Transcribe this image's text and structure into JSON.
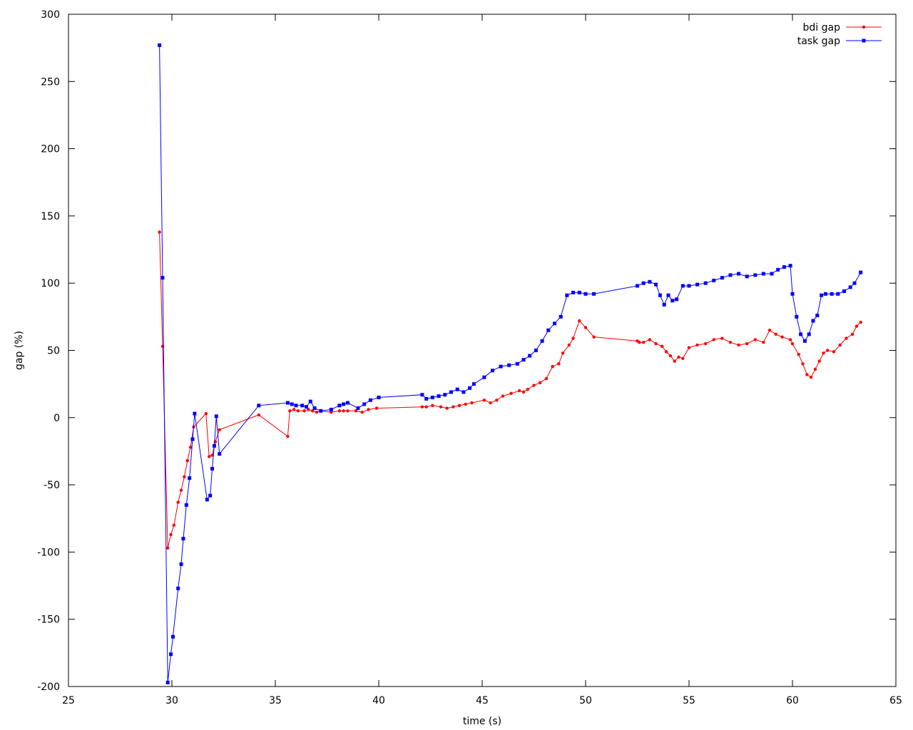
{
  "chart_data": {
    "type": "line",
    "xlabel": "time (s)",
    "ylabel": "gap (%)",
    "xlim": [
      25,
      65
    ],
    "ylim": [
      -200,
      300
    ],
    "xticks": [
      25,
      30,
      35,
      40,
      45,
      50,
      55,
      60,
      65
    ],
    "yticks": [
      -200,
      -150,
      -100,
      -50,
      0,
      50,
      100,
      150,
      200,
      250,
      300
    ],
    "grid": false,
    "legend_position": "top-right",
    "series": [
      {
        "name": "bdi gap",
        "color": "#ff0000",
        "marker": "circle",
        "x": [
          29.4,
          29.55,
          29.8,
          29.95,
          30.1,
          30.3,
          30.45,
          30.6,
          30.75,
          30.9,
          31.05,
          31.65,
          31.8,
          31.95,
          32.1,
          32.3,
          34.2,
          35.6,
          35.7,
          35.9,
          36.1,
          36.4,
          36.6,
          36.8,
          37.0,
          37.2,
          37.7,
          38.1,
          38.3,
          38.5,
          38.9,
          39.2,
          39.5,
          39.9,
          42.1,
          42.3,
          42.6,
          43.0,
          43.3,
          43.6,
          43.9,
          44.2,
          44.5,
          45.1,
          45.4,
          45.7,
          46.0,
          46.4,
          46.8,
          47.0,
          47.2,
          47.5,
          47.8,
          48.1,
          48.4,
          48.7,
          48.9,
          49.2,
          49.4,
          49.7,
          50.0,
          50.4,
          52.5,
          52.6,
          52.8,
          53.1,
          53.4,
          53.7,
          53.9,
          54.1,
          54.3,
          54.5,
          54.7,
          55.0,
          55.4,
          55.8,
          56.2,
          56.6,
          57.0,
          57.4,
          57.8,
          58.2,
          58.6,
          58.9,
          59.2,
          59.5,
          59.9,
          60.0,
          60.3,
          60.5,
          60.7,
          60.9,
          61.1,
          61.3,
          61.5,
          61.7,
          62.0,
          62.3,
          62.6,
          62.9,
          63.1,
          63.3
        ],
        "y": [
          138,
          53,
          -97,
          -87,
          -80,
          -63,
          -54,
          -44,
          -32,
          -22,
          -7,
          3,
          -29,
          -28,
          -18,
          -9,
          2,
          -14,
          5,
          6,
          5,
          5,
          6,
          5,
          4,
          5,
          4,
          5,
          5,
          5,
          5,
          4,
          6,
          7,
          8,
          8,
          9,
          8,
          7,
          8,
          9,
          10,
          11,
          13,
          11,
          13,
          16,
          18,
          20,
          19,
          21,
          24,
          26,
          29,
          38,
          40,
          48,
          54,
          59,
          72,
          67,
          60,
          57,
          56,
          56,
          58,
          55,
          53,
          49,
          46,
          42,
          45,
          44,
          52,
          54,
          55,
          58,
          59,
          56,
          54,
          55,
          58,
          56,
          65,
          62,
          60,
          58,
          55,
          47,
          40,
          32,
          30,
          36,
          42,
          48,
          50,
          49,
          54,
          59,
          62,
          68,
          71
        ],
        "legend_label": "bdi gap"
      },
      {
        "name": "task gap",
        "color": "#0000ff",
        "marker": "square",
        "x": [
          29.4,
          29.55,
          29.8,
          29.95,
          30.05,
          30.3,
          30.45,
          30.55,
          30.7,
          30.85,
          31.0,
          31.1,
          31.7,
          31.85,
          31.95,
          32.05,
          32.15,
          32.3,
          34.2,
          35.6,
          35.8,
          36.0,
          36.3,
          36.5,
          36.7,
          36.9,
          37.2,
          37.7,
          38.1,
          38.3,
          38.5,
          39.0,
          39.3,
          39.6,
          40.0,
          42.1,
          42.3,
          42.6,
          42.9,
          43.2,
          43.5,
          43.8,
          44.1,
          44.4,
          44.6,
          45.1,
          45.5,
          45.9,
          46.3,
          46.7,
          47.0,
          47.3,
          47.6,
          47.9,
          48.2,
          48.5,
          48.8,
          49.1,
          49.4,
          49.7,
          50.0,
          50.4,
          52.5,
          52.8,
          53.1,
          53.4,
          53.6,
          53.8,
          54.0,
          54.2,
          54.4,
          54.7,
          55.0,
          55.4,
          55.8,
          56.2,
          56.6,
          57.0,
          57.4,
          57.8,
          58.2,
          58.6,
          59.0,
          59.3,
          59.6,
          59.9,
          60.0,
          60.2,
          60.4,
          60.6,
          60.8,
          61.0,
          61.2,
          61.4,
          61.6,
          61.9,
          62.2,
          62.5,
          62.8,
          63.0,
          63.3
        ],
        "y": [
          277,
          104,
          -197,
          -176,
          -163,
          -127,
          -109,
          -90,
          -65,
          -45,
          -16,
          3,
          -61,
          -58,
          -38,
          -21,
          1,
          -27,
          9,
          11,
          10,
          9,
          9,
          8,
          12,
          7,
          5,
          6,
          9,
          10,
          11,
          7,
          10,
          13,
          15,
          17,
          14,
          15,
          16,
          17,
          19,
          21,
          19,
          22,
          25,
          30,
          35,
          38,
          39,
          40,
          43,
          46,
          50,
          57,
          65,
          70,
          75,
          91,
          93,
          93,
          92,
          92,
          98,
          100,
          101,
          99,
          91,
          84,
          91,
          87,
          88,
          98,
          98,
          99,
          100,
          102,
          104,
          106,
          107,
          105,
          106,
          107,
          107,
          110,
          112,
          113,
          92,
          75,
          62,
          57,
          62,
          72,
          76,
          91,
          92,
          92,
          92,
          94,
          97,
          100,
          108
        ],
        "legend_label": "task gap"
      }
    ]
  }
}
